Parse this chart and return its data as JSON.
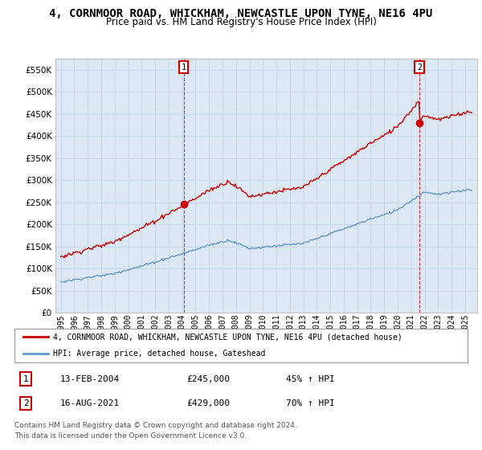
{
  "title": "4, CORNMOOR ROAD, WHICKHAM, NEWCASTLE UPON TYNE, NE16 4PU",
  "subtitle": "Price paid vs. HM Land Registry's House Price Index (HPI)",
  "yticks": [
    0,
    50000,
    100000,
    150000,
    200000,
    250000,
    300000,
    350000,
    400000,
    450000,
    500000,
    550000
  ],
  "ylim": [
    0,
    575000
  ],
  "sale1_year": 2004.12,
  "sale1_price": 245000,
  "sale1_date_str": "13-FEB-2004",
  "sale1_pct": "45% ↑ HPI",
  "sale2_year": 2021.62,
  "sale2_price": 429000,
  "sale2_date_str": "16-AUG-2021",
  "sale2_pct": "70% ↑ HPI",
  "line1_color": "#cc0000",
  "line2_color": "#6699cc",
  "plot_bg_color": "#dce9f5",
  "legend_label1": "4, CORNMOOR ROAD, WHICKHAM, NEWCASTLE UPON TYNE, NE16 4PU (detached house)",
  "legend_label2": "HPI: Average price, detached house, Gateshead",
  "footer1": "Contains HM Land Registry data © Crown copyright and database right 2024.",
  "footer2": "This data is licensed under the Open Government Licence v3.0.",
  "background_color": "#ffffff",
  "grid_color": "#c8d8e8",
  "title_fontsize": 10,
  "subtitle_fontsize": 8.5
}
